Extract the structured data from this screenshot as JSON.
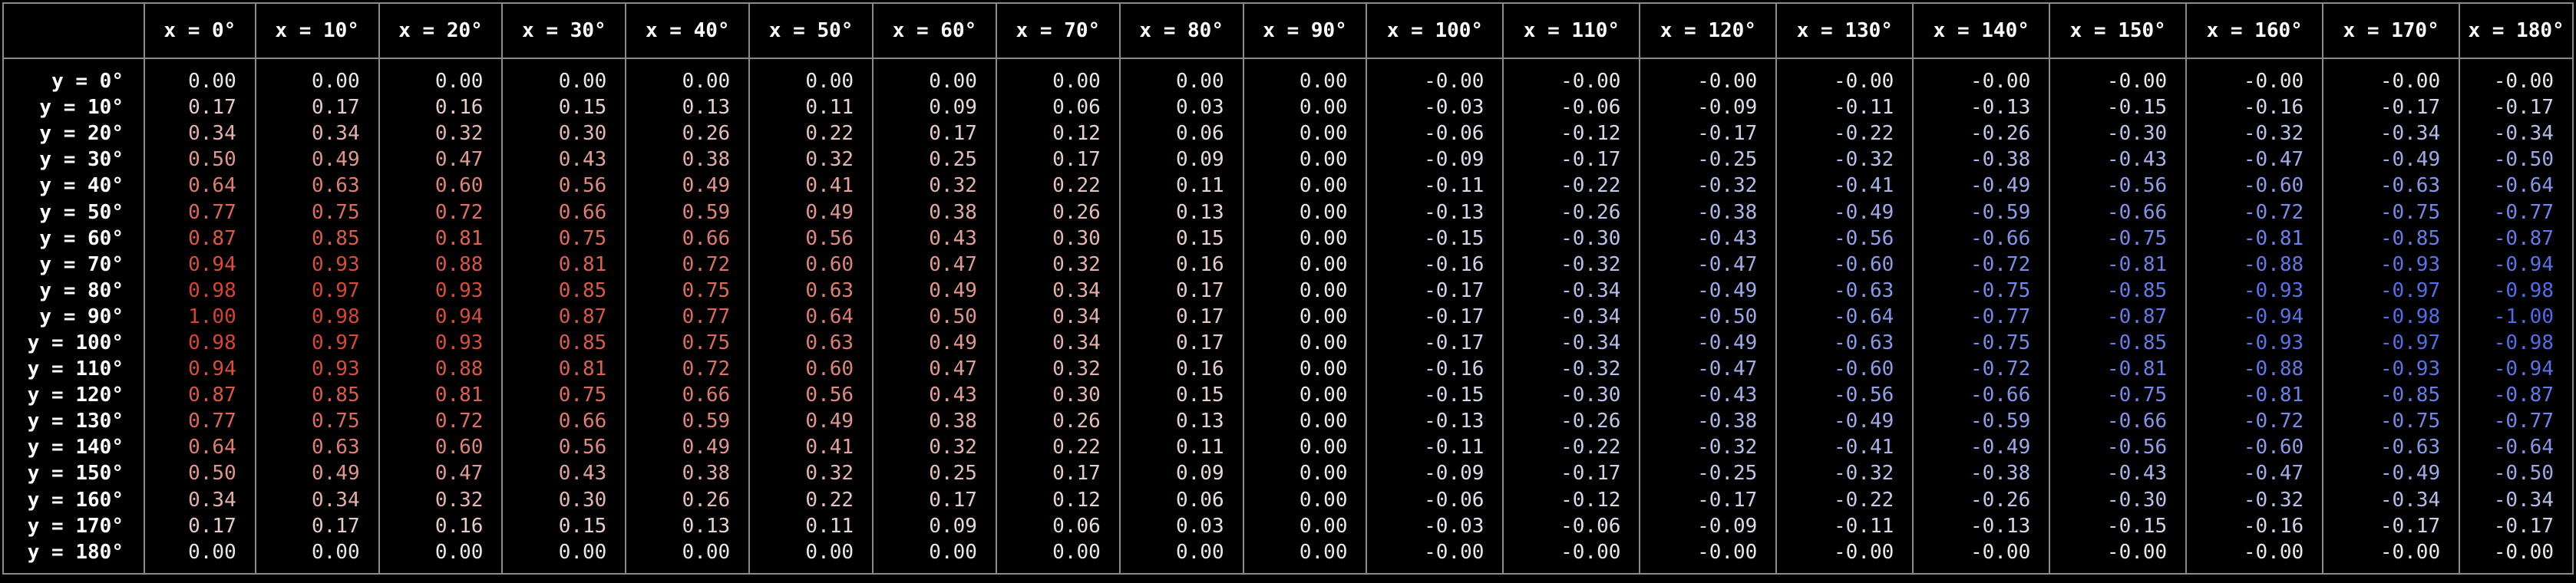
{
  "chart_data": {
    "type": "table",
    "corner": "",
    "columns": [
      "x = 0°",
      "x = 10°",
      "x = 20°",
      "x = 30°",
      "x = 40°",
      "x = 50°",
      "x = 60°",
      "x = 70°",
      "x = 80°",
      "x = 90°",
      "x = 100°",
      "x = 110°",
      "x = 120°",
      "x = 130°",
      "x = 140°",
      "x = 150°",
      "x = 160°",
      "x = 170°",
      "x = 180°"
    ],
    "rows": [
      "y = 0°",
      "y = 10°",
      "y = 20°",
      "y = 30°",
      "y = 40°",
      "y = 50°",
      "y = 60°",
      "y = 70°",
      "y = 80°",
      "y = 90°",
      "y = 100°",
      "y = 110°",
      "y = 120°",
      "y = 130°",
      "y = 140°",
      "y = 150°",
      "y = 160°",
      "y = 170°",
      "y = 180°"
    ],
    "cells": [
      [
        "0.00",
        "0.00",
        "0.00",
        "0.00",
        "0.00",
        "0.00",
        "0.00",
        "0.00",
        "0.00",
        "0.00",
        "-0.00",
        "-0.00",
        "-0.00",
        "-0.00",
        "-0.00",
        "-0.00",
        "-0.00",
        "-0.00",
        "-0.00"
      ],
      [
        "0.17",
        "0.17",
        "0.16",
        "0.15",
        "0.13",
        "0.11",
        "0.09",
        "0.06",
        "0.03",
        "0.00",
        "-0.03",
        "-0.06",
        "-0.09",
        "-0.11",
        "-0.13",
        "-0.15",
        "-0.16",
        "-0.17",
        "-0.17"
      ],
      [
        "0.34",
        "0.34",
        "0.32",
        "0.30",
        "0.26",
        "0.22",
        "0.17",
        "0.12",
        "0.06",
        "0.00",
        "-0.06",
        "-0.12",
        "-0.17",
        "-0.22",
        "-0.26",
        "-0.30",
        "-0.32",
        "-0.34",
        "-0.34"
      ],
      [
        "0.50",
        "0.49",
        "0.47",
        "0.43",
        "0.38",
        "0.32",
        "0.25",
        "0.17",
        "0.09",
        "0.00",
        "-0.09",
        "-0.17",
        "-0.25",
        "-0.32",
        "-0.38",
        "-0.43",
        "-0.47",
        "-0.49",
        "-0.50"
      ],
      [
        "0.64",
        "0.63",
        "0.60",
        "0.56",
        "0.49",
        "0.41",
        "0.32",
        "0.22",
        "0.11",
        "0.00",
        "-0.11",
        "-0.22",
        "-0.32",
        "-0.41",
        "-0.49",
        "-0.56",
        "-0.60",
        "-0.63",
        "-0.64"
      ],
      [
        "0.77",
        "0.75",
        "0.72",
        "0.66",
        "0.59",
        "0.49",
        "0.38",
        "0.26",
        "0.13",
        "0.00",
        "-0.13",
        "-0.26",
        "-0.38",
        "-0.49",
        "-0.59",
        "-0.66",
        "-0.72",
        "-0.75",
        "-0.77"
      ],
      [
        "0.87",
        "0.85",
        "0.81",
        "0.75",
        "0.66",
        "0.56",
        "0.43",
        "0.30",
        "0.15",
        "0.00",
        "-0.15",
        "-0.30",
        "-0.43",
        "-0.56",
        "-0.66",
        "-0.75",
        "-0.81",
        "-0.85",
        "-0.87"
      ],
      [
        "0.94",
        "0.93",
        "0.88",
        "0.81",
        "0.72",
        "0.60",
        "0.47",
        "0.32",
        "0.16",
        "0.00",
        "-0.16",
        "-0.32",
        "-0.47",
        "-0.60",
        "-0.72",
        "-0.81",
        "-0.88",
        "-0.93",
        "-0.94"
      ],
      [
        "0.98",
        "0.97",
        "0.93",
        "0.85",
        "0.75",
        "0.63",
        "0.49",
        "0.34",
        "0.17",
        "0.00",
        "-0.17",
        "-0.34",
        "-0.49",
        "-0.63",
        "-0.75",
        "-0.85",
        "-0.93",
        "-0.97",
        "-0.98"
      ],
      [
        "1.00",
        "0.98",
        "0.94",
        "0.87",
        "0.77",
        "0.64",
        "0.50",
        "0.34",
        "0.17",
        "0.00",
        "-0.17",
        "-0.34",
        "-0.50",
        "-0.64",
        "-0.77",
        "-0.87",
        "-0.94",
        "-0.98",
        "-1.00"
      ],
      [
        "0.98",
        "0.97",
        "0.93",
        "0.85",
        "0.75",
        "0.63",
        "0.49",
        "0.34",
        "0.17",
        "0.00",
        "-0.17",
        "-0.34",
        "-0.49",
        "-0.63",
        "-0.75",
        "-0.85",
        "-0.93",
        "-0.97",
        "-0.98"
      ],
      [
        "0.94",
        "0.93",
        "0.88",
        "0.81",
        "0.72",
        "0.60",
        "0.47",
        "0.32",
        "0.16",
        "0.00",
        "-0.16",
        "-0.32",
        "-0.47",
        "-0.60",
        "-0.72",
        "-0.81",
        "-0.88",
        "-0.93",
        "-0.94"
      ],
      [
        "0.87",
        "0.85",
        "0.81",
        "0.75",
        "0.66",
        "0.56",
        "0.43",
        "0.30",
        "0.15",
        "0.00",
        "-0.15",
        "-0.30",
        "-0.43",
        "-0.56",
        "-0.66",
        "-0.75",
        "-0.81",
        "-0.85",
        "-0.87"
      ],
      [
        "0.77",
        "0.75",
        "0.72",
        "0.66",
        "0.59",
        "0.49",
        "0.38",
        "0.26",
        "0.13",
        "0.00",
        "-0.13",
        "-0.26",
        "-0.38",
        "-0.49",
        "-0.59",
        "-0.66",
        "-0.72",
        "-0.75",
        "-0.77"
      ],
      [
        "0.64",
        "0.63",
        "0.60",
        "0.56",
        "0.49",
        "0.41",
        "0.32",
        "0.22",
        "0.11",
        "0.00",
        "-0.11",
        "-0.22",
        "-0.32",
        "-0.41",
        "-0.49",
        "-0.56",
        "-0.60",
        "-0.63",
        "-0.64"
      ],
      [
        "0.50",
        "0.49",
        "0.47",
        "0.43",
        "0.38",
        "0.32",
        "0.25",
        "0.17",
        "0.09",
        "0.00",
        "-0.09",
        "-0.17",
        "-0.25",
        "-0.32",
        "-0.38",
        "-0.43",
        "-0.47",
        "-0.49",
        "-0.50"
      ],
      [
        "0.34",
        "0.34",
        "0.32",
        "0.30",
        "0.26",
        "0.22",
        "0.17",
        "0.12",
        "0.06",
        "0.00",
        "-0.06",
        "-0.12",
        "-0.17",
        "-0.22",
        "-0.26",
        "-0.30",
        "-0.32",
        "-0.34",
        "-0.34"
      ],
      [
        "0.17",
        "0.17",
        "0.16",
        "0.15",
        "0.13",
        "0.11",
        "0.09",
        "0.06",
        "0.03",
        "0.00",
        "-0.03",
        "-0.06",
        "-0.09",
        "-0.11",
        "-0.13",
        "-0.15",
        "-0.16",
        "-0.17",
        "-0.17"
      ],
      [
        "0.00",
        "0.00",
        "0.00",
        "0.00",
        "0.00",
        "0.00",
        "0.00",
        "0.00",
        "0.00",
        "0.00",
        "-0.00",
        "-0.00",
        "-0.00",
        "-0.00",
        "-0.00",
        "-0.00",
        "-0.00",
        "-0.00",
        "-0.00"
      ]
    ],
    "colors": {
      "neutral": "#e8e8e8",
      "positive_max": "#d9412f",
      "negative_max": "#4f6ae8",
      "background": "#000000",
      "grid": "#8a8a8a"
    }
  }
}
